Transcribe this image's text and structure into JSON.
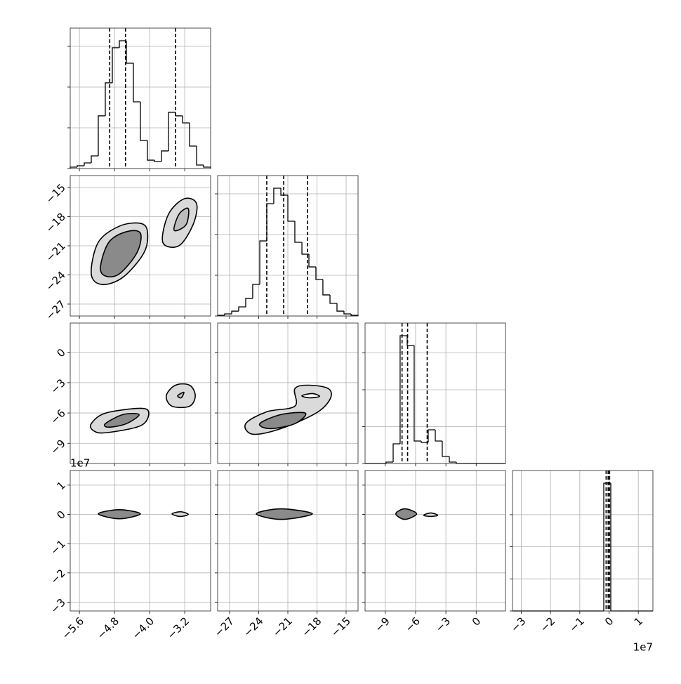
{
  "chart_data": {
    "type": "corner",
    "variables": [
      {
        "lim": [
          -5.81,
          -2.61
        ],
        "ticks": [
          {
            "value": -5.6,
            "label": "−5.6"
          },
          {
            "value": -4.8,
            "label": "−4.8"
          },
          {
            "value": -4.0,
            "label": "−4.0"
          },
          {
            "value": -3.2,
            "label": "−3.2"
          }
        ],
        "hist": {
          "bins": [
            -5.81,
            -5.65,
            -5.49,
            -5.33,
            -5.17,
            -5.01,
            -4.85,
            -4.69,
            -4.53,
            -4.37,
            -4.21,
            -4.05,
            -3.89,
            -3.73,
            -3.57,
            -3.41,
            -3.25,
            -3.09,
            -2.93,
            -2.77,
            -2.61
          ],
          "counts": [
            17,
            34,
            69,
            155,
            647,
            1052,
            1483,
            1569,
            1293,
            819,
            345,
            103,
            86,
            216,
            690,
            647,
            560,
            276,
            43,
            17
          ],
          "ylim": [
            0,
            1724
          ],
          "yticks": [
            0,
            500,
            1000,
            1500
          ]
        },
        "quantiles": [
          -4.91,
          -4.55,
          -3.41
        ],
        "joint": []
      },
      {
        "lim": [
          -28.23,
          -13.77
        ],
        "ticks": [
          {
            "value": -27,
            "label": "−27"
          },
          {
            "value": -24,
            "label": "−24"
          },
          {
            "value": -21,
            "label": "−21"
          },
          {
            "value": -18,
            "label": "−18"
          },
          {
            "value": -15,
            "label": "−15"
          }
        ],
        "hist": {
          "bins": [
            -28.23,
            -27.51,
            -26.78,
            -26.06,
            -25.34,
            -24.62,
            -23.89,
            -23.17,
            -22.45,
            -21.72,
            -21.0,
            -20.28,
            -19.55,
            -18.83,
            -18.11,
            -17.39,
            -16.66,
            -15.94,
            -15.22,
            -14.49,
            -13.77
          ],
          "counts": [
            9,
            26,
            60,
            112,
            216,
            388,
            922,
            1379,
            1569,
            1483,
            1164,
            905,
            759,
            603,
            448,
            259,
            155,
            60,
            26,
            9
          ],
          "ylim": [
            0,
            1724
          ],
          "yticks": [
            0,
            500,
            1000,
            1500
          ]
        },
        "quantiles": [
          -23.17,
          -21.43,
          -18.97
        ],
        "joint": [
          {
            "contours": [
              {
                "fill": "#dadada",
                "x": [
                  -5.33,
                  -5.17,
                  -4.69,
                  -4.21,
                  -4.05,
                  -4.13,
                  -4.61,
                  -5.09
                ],
                "y": [
                  -23.89,
                  -20.64,
                  -18.98,
                  -18.69,
                  -19.55,
                  -21.72,
                  -24.25,
                  -24.98
                ]
              },
              {
                "fill": "#8a8a8a",
                "x": [
                  -5.12,
                  -4.93,
                  -4.53,
                  -4.21,
                  -4.29,
                  -4.69,
                  -5.01
                ],
                "y": [
                  -23.17,
                  -20.64,
                  -19.55,
                  -19.7,
                  -21.72,
                  -23.89,
                  -24.11
                ]
              },
              {
                "fill": "#dadada",
                "x": [
                  -3.7,
                  -3.57,
                  -3.21,
                  -2.93,
                  -3.01,
                  -3.33
                ],
                "y": [
                  -20.64,
                  -17.75,
                  -16.16,
                  -16.66,
                  -18.83,
                  -20.99
                ]
              },
              {
                "fill": "#bdbdbd",
                "x": [
                  -3.44,
                  -3.33,
                  -3.12,
                  -3.17
                ],
                "y": [
                  -19.41,
                  -17.75,
                  -17.17,
                  -18.83
                ]
              }
            ]
          }
        ]
      },
      {
        "lim": [
          -11,
          2.9
        ],
        "ticks": [
          {
            "value": -9,
            "label": "−9"
          },
          {
            "value": -6,
            "label": "−6"
          },
          {
            "value": -3,
            "label": "−3"
          },
          0
        ],
        "hist": {
          "bins": [
            -11,
            -10.31,
            -9.61,
            -8.92,
            -8.22,
            -7.53,
            -6.83,
            -6.14,
            -5.44,
            -4.75,
            -4.05,
            -3.36,
            -2.66,
            -1.97,
            -1.27,
            -0.58,
            0.12,
            0.82,
            1.51,
            2.21,
            2.9
          ],
          "counts": [
            0,
            0,
            0,
            38,
            533,
            3467,
            3200,
            610,
            571,
            914,
            610,
            190,
            38,
            0,
            0,
            0,
            0,
            0,
            0,
            0
          ],
          "ylim": [
            0,
            3810
          ],
          "yticks": [
            0,
            1000,
            2000,
            3000
          ]
        },
        "quantiles": [
          -7.34,
          -6.79,
          -4.85
        ],
        "joint": [
          {
            "contours": [
              {
                "fill": "#dadada",
                "x": [
                  -5.33,
                  -5.01,
                  -4.21,
                  -4.02,
                  -4.21,
                  -5.01,
                  -5.28
                ],
                "y": [
                  -7.06,
                  -6.02,
                  -5.54,
                  -6.02,
                  -7.27,
                  -7.96,
                  -7.75
                ]
              },
              {
                "fill": "#8a8a8a",
                "x": [
                  -5.01,
                  -4.61,
                  -4.24,
                  -4.53,
                  -4.93
                ],
                "y": [
                  -7.06,
                  -6.16,
                  -6.16,
                  -7.06,
                  -7.41
                ]
              },
              {
                "fill": "#dadada",
                "x": [
                  -3.62,
                  -3.41,
                  -3.09,
                  -2.96,
                  -3.09,
                  -3.49
                ],
                "y": [
                  -4.29,
                  -3.25,
                  -3.25,
                  -4.29,
                  -5.33,
                  -5.33
                ]
              },
              {
                "fill": "#bdbdbd",
                "x": [
                  -3.36,
                  -3.22,
                  -3.28
                ],
                "y": [
                  -4.29,
                  -3.95,
                  -4.5
                ]
              }
            ]
          },
          {
            "contours": [
              {
                "fill": "#dadada",
                "x": [
                  -25.34,
                  -23.17,
                  -20.28,
                  -20.28,
                  -18.83,
                  -16.81,
                  -16.66,
                  -18.11,
                  -21.72,
                  -24.62
                ],
                "y": [
                  -7.06,
                  -5.88,
                  -5.33,
                  -3.6,
                  -3.25,
                  -3.6,
                  -4.64,
                  -6.02,
                  -7.55,
                  -8.1
                ]
              },
              {
                "fill": "#8a8a8a",
                "x": [
                  -23.89,
                  -21.72,
                  -19.19,
                  -20.28,
                  -22.81
                ],
                "y": [
                  -7.06,
                  -6.16,
                  -6.02,
                  -7.06,
                  -7.55
                ]
              },
              {
                "fill": "#ffffff",
                "x": [
                  -19.55,
                  -18.47,
                  -17.74,
                  -18.83
                ],
                "y": [
                  -4.29,
                  -4.08,
                  -4.36,
                  -4.5
                ]
              }
            ]
          }
        ]
      },
      {
        "lim": [
          -3.3,
          1.5
        ],
        "ticks": [
          {
            "value": -3,
            "label": "−3"
          },
          {
            "value": -2,
            "label": "−2"
          },
          {
            "value": -1,
            "label": "−1"
          },
          0,
          1
        ],
        "offset_label": "1e7",
        "hist": {
          "bins": [
            -3.3,
            -3.06,
            -2.82,
            -2.58,
            -2.34,
            -2.1,
            -1.86,
            -1.62,
            -1.38,
            -1.14,
            -0.9,
            -0.66,
            -0.42,
            -0.18,
            0.06,
            0.3,
            0.54,
            0.78,
            1.02,
            1.26,
            1.5
          ],
          "counts": [
            0,
            0,
            0,
            0,
            0,
            0,
            0,
            0,
            0,
            0,
            0,
            0,
            0,
            19912,
            0,
            0,
            0,
            0,
            0,
            0
          ],
          "ylim": [
            0,
            21882
          ],
          "yticks": [
            0,
            5000,
            10000,
            15000
          ]
        },
        "quantiles": [
          -0.1,
          -0.03,
          0.02
        ],
        "joint": [
          {
            "contours": [
              {
                "fill": "#8a8a8a",
                "x": [
                  -5.17,
                  -4.69,
                  -4.21,
                  -4.69
                ],
                "y": [
                  0.02,
                  0.16,
                  0.02,
                  -0.15
                ]
              },
              {
                "fill": "#dadada",
                "x": [
                  -3.49,
                  -3.29,
                  -3.12,
                  -3.31
                ],
                "y": [
                  0.02,
                  0.09,
                  0.0,
                  -0.07
                ]
              }
            ]
          },
          {
            "contours": [
              {
                "fill": "#8a8a8a",
                "x": [
                  -24.25,
                  -21.72,
                  -18.47,
                  -21.72
                ],
                "y": [
                  0.02,
                  0.19,
                  0.02,
                  -0.17
                ]
              }
            ]
          },
          {
            "contours": [
              {
                "fill": "#8a8a8a",
                "x": [
                  -7.96,
                  -7.06,
                  -5.89,
                  -7.06
                ],
                "y": [
                  0.02,
                  0.19,
                  0.02,
                  -0.17
                ]
              },
              {
                "fill": "#dadada",
                "x": [
                  -5.19,
                  -4.5,
                  -3.81,
                  -4.5
                ],
                "y": [
                  -0.03,
                  0.05,
                  -0.03,
                  -0.07
                ]
              }
            ]
          }
        ]
      }
    ]
  }
}
